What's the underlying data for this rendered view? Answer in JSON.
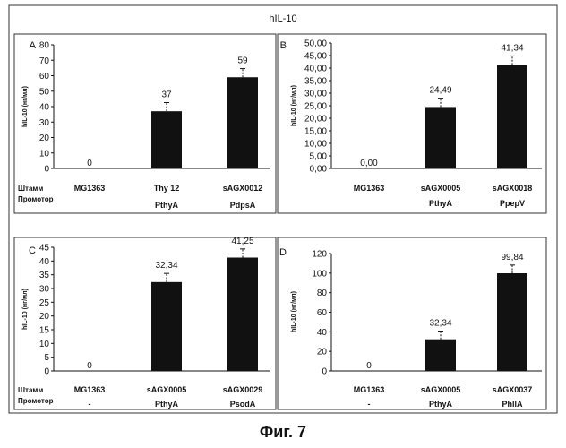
{
  "figure": {
    "title": "hIL-10",
    "caption": "Фиг. 7"
  },
  "chart_data": [
    {
      "type": "bar",
      "panel_letter": "A",
      "ylabel": "hIL-10 (нг/мл)",
      "ylim": [
        0,
        80
      ],
      "yticks": [
        "0",
        "10",
        "20",
        "30",
        "40",
        "50",
        "60",
        "70",
        "80"
      ],
      "categories": [
        "MG1363",
        "Thy 12",
        "sAGX0012"
      ],
      "promoters": [
        "",
        "PthyA",
        "PdpsA"
      ],
      "values": [
        0,
        37,
        59
      ],
      "value_labels": [
        "0",
        "37",
        "59"
      ],
      "row_labels": {
        "strain": "Штамм",
        "promoter": "Промотор"
      },
      "error_bars": true
    },
    {
      "type": "bar",
      "panel_letter": "B",
      "ylabel": "hIL-10 (нг/мл)",
      "ylim": [
        0,
        50
      ],
      "yticks": [
        "0,00",
        "5,00",
        "10,00",
        "15,00",
        "20,00",
        "25,00",
        "30,00",
        "35,00",
        "40,00",
        "45,00",
        "50,00"
      ],
      "categories": [
        "MG1363",
        "sAGX0005",
        "sAGX0018"
      ],
      "promoters": [
        "",
        "PthyA",
        "PpepV"
      ],
      "values": [
        0.0,
        24.49,
        41.34
      ],
      "value_labels": [
        "0,00",
        "24,49",
        "41,34"
      ],
      "error_bars": true
    },
    {
      "type": "bar",
      "panel_letter": "C",
      "ylabel": "hIL-10 (нг/мл)",
      "ylim": [
        0,
        45
      ],
      "yticks": [
        "0",
        "5",
        "10",
        "15",
        "20",
        "25",
        "30",
        "35",
        "40",
        "45"
      ],
      "categories": [
        "MG1363",
        "sAGX0005",
        "sAGX0029"
      ],
      "promoters": [
        "-",
        "PthyA",
        "PsodA"
      ],
      "values": [
        0,
        32.34,
        41.25
      ],
      "value_labels": [
        "0",
        "32,34",
        "41,25"
      ],
      "row_labels": {
        "strain": "Штамм",
        "promoter": "Промотор"
      },
      "error_bars": true
    },
    {
      "type": "bar",
      "panel_letter": "D",
      "ylabel": "hIL-10 (нг/мл)",
      "ylim": [
        0,
        120
      ],
      "yticks": [
        "0",
        "20",
        "40",
        "60",
        "80",
        "100",
        "120"
      ],
      "categories": [
        "MG1363",
        "sAGX0005",
        "sAGX0037"
      ],
      "promoters": [
        "-",
        "PthyA",
        "PhllA"
      ],
      "values": [
        0,
        32.34,
        99.84
      ],
      "value_labels": [
        "0",
        "32,34",
        "99,84"
      ],
      "error_bars": true
    }
  ]
}
